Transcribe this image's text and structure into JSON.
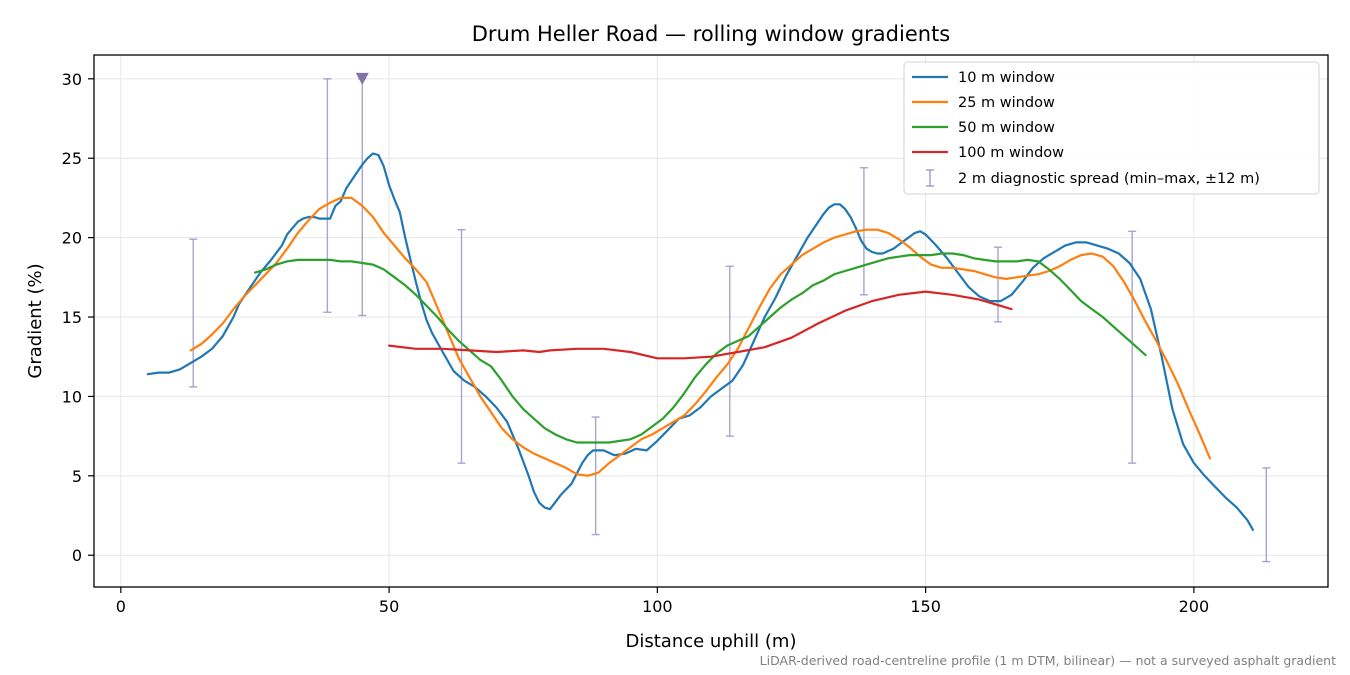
{
  "chart_data": {
    "type": "line",
    "title": "Drum Heller Road — rolling window gradients",
    "xlabel": "Distance uphill (m)",
    "ylabel": "Gradient (%)",
    "xlim": [
      -5,
      225
    ],
    "ylim": [
      -2,
      31.5
    ],
    "xticks": [
      0,
      50,
      100,
      150,
      200
    ],
    "yticks": [
      0,
      5,
      10,
      15,
      20,
      25,
      30
    ],
    "grid": true,
    "legend_position": "top-right",
    "footnote": "LiDAR-derived road-centreline profile (1 m DTM, bilinear) — not a surveyed asphalt gradient",
    "colors": {
      "w10": "#1f77b4",
      "w25": "#ff7f0e",
      "w50": "#2ca02c",
      "w100": "#d62728",
      "spread": "#9e9ac8",
      "marker": "#8073ac"
    },
    "series": [
      {
        "name": "10 m window",
        "color": "#1f77b4",
        "x": [
          5,
          7,
          9,
          11,
          13,
          15,
          17,
          19,
          21,
          22,
          24,
          26,
          28,
          30,
          31,
          32,
          33,
          34,
          35,
          36,
          37,
          38,
          39,
          40,
          41,
          42,
          43,
          44,
          45,
          46,
          47,
          48,
          49,
          50,
          51,
          52,
          53,
          54,
          55,
          56,
          57,
          58,
          60,
          62,
          64,
          66,
          68,
          70,
          72,
          74,
          76,
          77,
          78,
          79,
          80,
          82,
          84,
          86,
          87,
          88,
          90,
          92,
          94,
          96,
          98,
          100,
          102,
          104,
          106,
          108,
          110,
          112,
          114,
          116,
          118,
          120,
          122,
          124,
          126,
          128,
          130,
          131,
          132,
          133,
          134,
          135,
          136,
          137,
          138,
          139,
          140,
          141,
          142,
          144,
          146,
          148,
          149,
          150,
          152,
          154,
          156,
          158,
          160,
          162,
          164,
          166,
          168,
          170,
          172,
          174,
          176,
          178,
          180,
          182,
          184,
          186,
          188,
          190,
          192,
          194,
          196,
          198,
          200,
          202,
          204,
          206,
          208,
          210,
          211
        ],
        "values": [
          11.4,
          11.5,
          11.5,
          11.7,
          12.1,
          12.5,
          13.0,
          13.8,
          15.0,
          15.8,
          16.8,
          17.8,
          18.6,
          19.5,
          20.2,
          20.6,
          21.0,
          21.2,
          21.3,
          21.3,
          21.2,
          21.2,
          21.2,
          22.0,
          22.3,
          23.1,
          23.6,
          24.1,
          24.6,
          25.0,
          25.3,
          25.2,
          24.5,
          23.3,
          22.4,
          21.6,
          20.0,
          18.6,
          17.2,
          15.9,
          14.8,
          14.0,
          12.8,
          11.6,
          11.0,
          10.6,
          10.0,
          9.3,
          8.4,
          6.8,
          5.0,
          4.0,
          3.3,
          3.0,
          2.9,
          3.8,
          4.5,
          5.8,
          6.3,
          6.6,
          6.6,
          6.3,
          6.4,
          6.7,
          6.6,
          7.2,
          7.9,
          8.6,
          8.8,
          9.3,
          10.0,
          10.5,
          11.0,
          12.0,
          13.5,
          15.0,
          16.2,
          17.6,
          18.8,
          20.0,
          21.0,
          21.5,
          21.9,
          22.1,
          22.1,
          21.8,
          21.3,
          20.6,
          19.8,
          19.3,
          19.1,
          19.0,
          19.0,
          19.3,
          19.8,
          20.3,
          20.4,
          20.2,
          19.5,
          18.7,
          17.8,
          16.9,
          16.3,
          16.0,
          16.0,
          16.4,
          17.2,
          18.1,
          18.7,
          19.1,
          19.5,
          19.7,
          19.7,
          19.5,
          19.3,
          19.0,
          18.4,
          17.4,
          15.5,
          12.5,
          9.2,
          7.0,
          5.8,
          5.0,
          4.3,
          3.6,
          3.0,
          2.2,
          1.6
        ]
      },
      {
        "name": "25 m window",
        "color": "#ff7f0e",
        "x": [
          13,
          15,
          17,
          19,
          21,
          23,
          25,
          27,
          29,
          31,
          33,
          35,
          37,
          39,
          41,
          43,
          45,
          47,
          49,
          51,
          53,
          55,
          57,
          59,
          61,
          63,
          65,
          67,
          69,
          71,
          73,
          75,
          77,
          79,
          81,
          83,
          85,
          87,
          89,
          91,
          93,
          95,
          97,
          99,
          101,
          103,
          105,
          107,
          109,
          111,
          113,
          115,
          117,
          119,
          121,
          123,
          125,
          127,
          129,
          131,
          133,
          135,
          137,
          139,
          141,
          143,
          145,
          147,
          149,
          151,
          153,
          155,
          157,
          159,
          161,
          163,
          165,
          167,
          169,
          171,
          173,
          175,
          177,
          179,
          181,
          183,
          185,
          187,
          189,
          191,
          193,
          195,
          197,
          199,
          201,
          203
        ],
        "values": [
          12.9,
          13.3,
          13.9,
          14.6,
          15.5,
          16.3,
          17.0,
          17.7,
          18.4,
          19.3,
          20.3,
          21.1,
          21.8,
          22.2,
          22.5,
          22.5,
          22.0,
          21.3,
          20.3,
          19.5,
          18.7,
          18.0,
          17.2,
          15.6,
          14.0,
          12.4,
          11.2,
          10.0,
          9.0,
          8.0,
          7.3,
          6.8,
          6.4,
          6.1,
          5.8,
          5.5,
          5.1,
          5.0,
          5.2,
          5.8,
          6.3,
          6.8,
          7.3,
          7.6,
          8.0,
          8.4,
          8.8,
          9.5,
          10.3,
          11.2,
          12.0,
          13.0,
          14.3,
          15.6,
          16.8,
          17.7,
          18.3,
          18.9,
          19.3,
          19.7,
          20.0,
          20.2,
          20.4,
          20.5,
          20.5,
          20.3,
          19.9,
          19.4,
          18.8,
          18.3,
          18.1,
          18.1,
          18.0,
          17.9,
          17.7,
          17.5,
          17.4,
          17.5,
          17.6,
          17.7,
          17.9,
          18.2,
          18.6,
          18.9,
          19.0,
          18.8,
          18.2,
          17.2,
          16.0,
          14.7,
          13.5,
          12.2,
          10.8,
          9.2,
          7.7,
          6.1
        ]
      },
      {
        "name": "50 m window",
        "color": "#2ca02c",
        "x": [
          25,
          27,
          29,
          31,
          33,
          35,
          37,
          39,
          41,
          43,
          45,
          47,
          49,
          51,
          53,
          55,
          57,
          59,
          61,
          63,
          65,
          67,
          69,
          71,
          73,
          75,
          77,
          79,
          81,
          83,
          85,
          87,
          89,
          91,
          93,
          95,
          97,
          99,
          101,
          103,
          105,
          107,
          109,
          111,
          113,
          115,
          117,
          119,
          121,
          123,
          125,
          127,
          129,
          131,
          133,
          135,
          137,
          139,
          141,
          143,
          145,
          147,
          149,
          151,
          153,
          155,
          157,
          159,
          161,
          163,
          165,
          167,
          169,
          171,
          173,
          175,
          177,
          179,
          181,
          183,
          185,
          187,
          189,
          191
        ],
        "values": [
          17.8,
          18.0,
          18.3,
          18.5,
          18.6,
          18.6,
          18.6,
          18.6,
          18.5,
          18.5,
          18.4,
          18.3,
          18.0,
          17.5,
          17.0,
          16.4,
          15.7,
          15.0,
          14.2,
          13.5,
          12.9,
          12.3,
          11.9,
          11.0,
          10.0,
          9.2,
          8.6,
          8.0,
          7.6,
          7.3,
          7.1,
          7.1,
          7.1,
          7.1,
          7.2,
          7.3,
          7.6,
          8.1,
          8.6,
          9.3,
          10.2,
          11.2,
          12.0,
          12.7,
          13.2,
          13.5,
          13.8,
          14.4,
          15.0,
          15.6,
          16.1,
          16.5,
          17.0,
          17.3,
          17.7,
          17.9,
          18.1,
          18.3,
          18.5,
          18.7,
          18.8,
          18.9,
          18.9,
          18.9,
          19.0,
          19.0,
          18.9,
          18.7,
          18.6,
          18.5,
          18.5,
          18.5,
          18.6,
          18.5,
          18.0,
          17.4,
          16.7,
          16.0,
          15.5,
          15.0,
          14.4,
          13.8,
          13.2,
          12.6
        ]
      },
      {
        "name": "100 m window",
        "color": "#d62728",
        "x": [
          50,
          55,
          60,
          65,
          70,
          75,
          78,
          80,
          85,
          90,
          95,
          100,
          105,
          110,
          115,
          120,
          125,
          130,
          135,
          140,
          145,
          150,
          155,
          160,
          166
        ],
        "values": [
          13.2,
          13.0,
          13.0,
          12.9,
          12.8,
          12.9,
          12.8,
          12.9,
          13.0,
          13.0,
          12.8,
          12.4,
          12.4,
          12.5,
          12.8,
          13.1,
          13.7,
          14.6,
          15.4,
          16.0,
          16.4,
          16.6,
          16.4,
          16.1,
          15.5
        ]
      }
    ],
    "spread_series": {
      "name": "2 m diagnostic spread (min–max, ±12 m)",
      "color": "#9e9ac8",
      "points": [
        {
          "x": 13.5,
          "min": 10.6,
          "max": 19.9
        },
        {
          "x": 38.5,
          "min": 15.3,
          "max": 30.0
        },
        {
          "x": 45.0,
          "min": 15.1,
          "max": 30.0
        },
        {
          "x": 63.5,
          "min": 5.8,
          "max": 20.5
        },
        {
          "x": 88.5,
          "min": 1.3,
          "max": 8.7
        },
        {
          "x": 113.5,
          "min": 7.5,
          "max": 18.2
        },
        {
          "x": 138.5,
          "min": 16.4,
          "max": 24.4
        },
        {
          "x": 163.5,
          "min": 14.7,
          "max": 19.4
        },
        {
          "x": 188.5,
          "min": 5.8,
          "max": 20.4
        },
        {
          "x": 213.5,
          "min": -0.4,
          "max": 5.5
        }
      ]
    },
    "marker": {
      "x": 45.0,
      "y": 30.0
    }
  }
}
